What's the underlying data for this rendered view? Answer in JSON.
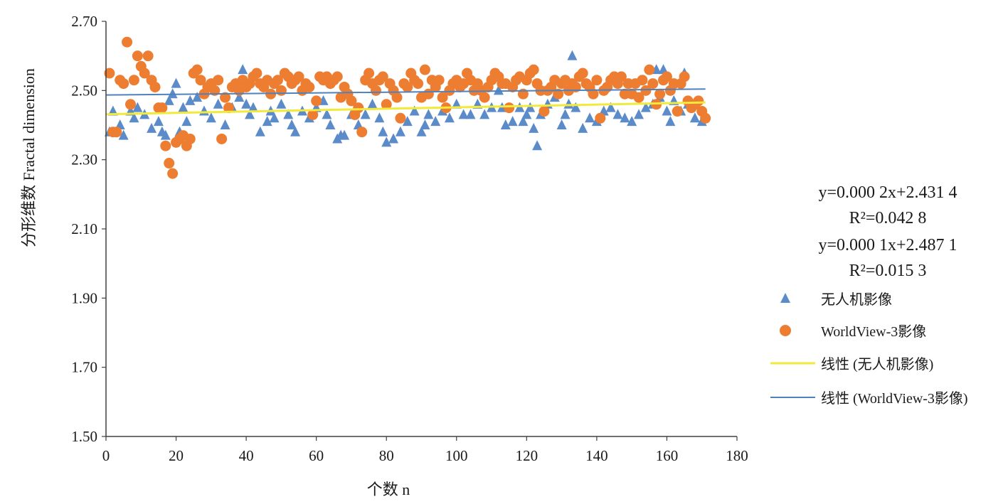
{
  "chart_data": {
    "type": "scatter",
    "xlabel": "个数 n",
    "ylabel": "分形维数 Fractal dimension",
    "xlim": [
      0,
      180
    ],
    "ylim": [
      1.5,
      2.7
    ],
    "x_ticks": [
      "0",
      "20",
      "40",
      "60",
      "80",
      "100",
      "120",
      "140",
      "160",
      "180"
    ],
    "y_ticks": [
      "1.50",
      "1.70",
      "1.90",
      "2.10",
      "2.30",
      "2.50",
      "2.70"
    ],
    "grid": false,
    "legend_position": "right",
    "series": [
      {
        "name": "无人机影像",
        "marker": "triangle",
        "color": "#5b8bc9",
        "x": [
          1,
          2,
          4,
          5,
          7,
          8,
          9,
          11,
          13,
          15,
          16,
          17,
          18,
          19,
          20,
          21,
          22,
          23,
          24,
          26,
          28,
          30,
          32,
          34,
          36,
          37,
          38,
          39,
          40,
          41,
          42,
          44,
          46,
          47,
          48,
          50,
          52,
          53,
          54,
          56,
          58,
          60,
          62,
          63,
          64,
          66,
          67,
          68,
          70,
          72,
          74,
          76,
          78,
          79,
          80,
          82,
          84,
          86,
          88,
          90,
          91,
          92,
          94,
          96,
          98,
          100,
          102,
          104,
          106,
          108,
          110,
          112,
          113,
          114,
          116,
          118,
          119,
          120,
          121,
          122,
          123,
          124,
          126,
          128,
          130,
          131,
          132,
          133,
          134,
          136,
          138,
          140,
          142,
          144,
          146,
          148,
          150,
          152,
          154,
          156,
          157,
          158,
          159,
          160,
          161,
          162,
          164,
          165,
          166,
          168,
          170
        ],
        "y": [
          2.38,
          2.44,
          2.4,
          2.37,
          2.44,
          2.42,
          2.45,
          2.43,
          2.39,
          2.41,
          2.38,
          2.37,
          2.47,
          2.49,
          2.52,
          2.38,
          2.45,
          2.41,
          2.47,
          2.48,
          2.44,
          2.42,
          2.46,
          2.4,
          2.45,
          2.52,
          2.48,
          2.56,
          2.46,
          2.43,
          2.45,
          2.38,
          2.41,
          2.44,
          2.42,
          2.46,
          2.43,
          2.4,
          2.38,
          2.44,
          2.42,
          2.45,
          2.47,
          2.43,
          2.4,
          2.36,
          2.37,
          2.37,
          2.43,
          2.4,
          2.43,
          2.46,
          2.42,
          2.38,
          2.35,
          2.36,
          2.38,
          2.41,
          2.44,
          2.38,
          2.4,
          2.43,
          2.41,
          2.44,
          2.42,
          2.46,
          2.43,
          2.43,
          2.46,
          2.43,
          2.45,
          2.5,
          2.45,
          2.4,
          2.41,
          2.45,
          2.41,
          2.43,
          2.45,
          2.39,
          2.34,
          2.43,
          2.46,
          2.48,
          2.4,
          2.43,
          2.46,
          2.6,
          2.45,
          2.39,
          2.42,
          2.41,
          2.44,
          2.45,
          2.43,
          2.42,
          2.41,
          2.43,
          2.45,
          2.46,
          2.56,
          2.48,
          2.56,
          2.44,
          2.41,
          2.47,
          2.44,
          2.55,
          2.46,
          2.42,
          2.41
        ]
      },
      {
        "name": "WorldView-3影像",
        "marker": "circle",
        "color": "#ed7d31",
        "x": [
          1,
          2,
          3,
          4,
          5,
          6,
          7,
          8,
          9,
          10,
          11,
          12,
          13,
          14,
          15,
          16,
          17,
          18,
          19,
          20,
          21,
          22,
          23,
          24,
          25,
          26,
          27,
          28,
          29,
          30,
          31,
          32,
          33,
          34,
          35,
          36,
          37,
          38,
          39,
          40,
          41,
          42,
          43,
          44,
          45,
          46,
          47,
          48,
          49,
          50,
          51,
          52,
          53,
          54,
          55,
          56,
          57,
          58,
          59,
          60,
          61,
          62,
          63,
          64,
          65,
          66,
          67,
          68,
          69,
          70,
          71,
          72,
          73,
          74,
          75,
          76,
          77,
          78,
          79,
          80,
          81,
          82,
          83,
          84,
          85,
          86,
          87,
          88,
          89,
          90,
          91,
          92,
          93,
          94,
          95,
          96,
          97,
          98,
          99,
          100,
          101,
          102,
          103,
          104,
          105,
          106,
          107,
          108,
          109,
          110,
          111,
          112,
          113,
          114,
          115,
          116,
          117,
          118,
          119,
          120,
          121,
          122,
          123,
          124,
          125,
          126,
          127,
          128,
          129,
          130,
          131,
          132,
          133,
          134,
          135,
          136,
          137,
          138,
          139,
          140,
          141,
          142,
          143,
          144,
          145,
          146,
          147,
          148,
          149,
          150,
          151,
          152,
          153,
          154,
          155,
          156,
          157,
          158,
          159,
          160,
          161,
          162,
          163,
          164,
          165,
          166,
          167,
          168,
          169,
          170,
          171
        ],
        "y": [
          2.55,
          2.38,
          2.38,
          2.53,
          2.52,
          2.64,
          2.46,
          2.53,
          2.6,
          2.57,
          2.55,
          2.6,
          2.53,
          2.51,
          2.45,
          2.45,
          2.34,
          2.29,
          2.26,
          2.35,
          2.36,
          2.37,
          2.34,
          2.36,
          2.55,
          2.56,
          2.53,
          2.49,
          2.51,
          2.52,
          2.5,
          2.53,
          2.36,
          2.48,
          2.45,
          2.51,
          2.52,
          2.5,
          2.53,
          2.51,
          2.52,
          2.54,
          2.55,
          2.52,
          2.51,
          2.53,
          2.49,
          2.52,
          2.53,
          2.5,
          2.55,
          2.54,
          2.52,
          2.53,
          2.54,
          2.5,
          2.52,
          2.51,
          2.43,
          2.47,
          2.54,
          2.53,
          2.54,
          2.52,
          2.53,
          2.54,
          2.48,
          2.51,
          2.49,
          2.47,
          2.43,
          2.45,
          2.38,
          2.53,
          2.55,
          2.52,
          2.5,
          2.53,
          2.54,
          2.46,
          2.52,
          2.5,
          2.48,
          2.42,
          2.52,
          2.51,
          2.55,
          2.53,
          2.52,
          2.48,
          2.56,
          2.49,
          2.53,
          2.51,
          2.53,
          2.48,
          2.45,
          2.5,
          2.52,
          2.53,
          2.51,
          2.52,
          2.55,
          2.53,
          2.5,
          2.52,
          2.5,
          2.48,
          2.51,
          2.53,
          2.55,
          2.54,
          2.52,
          2.52,
          2.45,
          2.51,
          2.53,
          2.54,
          2.49,
          2.53,
          2.55,
          2.56,
          2.52,
          2.5,
          2.44,
          2.5,
          2.51,
          2.53,
          2.49,
          2.52,
          2.53,
          2.5,
          2.52,
          2.51,
          2.54,
          2.55,
          2.52,
          2.51,
          2.49,
          2.53,
          2.42,
          2.5,
          2.51,
          2.53,
          2.54,
          2.52,
          2.54,
          2.49,
          2.52,
          2.49,
          2.52,
          2.48,
          2.53,
          2.5,
          2.56,
          2.52,
          2.46,
          2.49,
          2.53,
          2.54,
          2.5,
          2.52,
          2.44,
          2.52,
          2.54,
          2.47,
          2.45,
          2.46,
          2.47,
          2.44,
          2.42
        ]
      }
    ],
    "trendlines": [
      {
        "name": "线性 (无人机影像)",
        "slope": 0.0002,
        "intercept": 2.4314,
        "color": "#f2ea3a",
        "equation": "y=0.000 2x+2.431 4",
        "r2": "R²=0.042 8"
      },
      {
        "name": "线性 (WorldView-3影像)",
        "slope": 0.0001,
        "intercept": 2.4871,
        "color": "#4f81bd",
        "equation": "y=0.000 1x+2.487 1",
        "r2": "R²=0.015 3"
      }
    ]
  }
}
